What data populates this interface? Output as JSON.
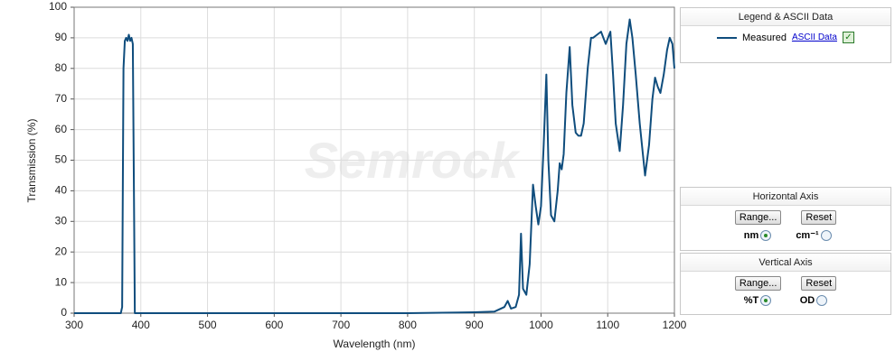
{
  "chart_data": {
    "type": "line",
    "x_label": "Wavelength (nm)",
    "y_label": "Transmission (%)",
    "watermark": "Semrock",
    "xlim": [
      300,
      1200
    ],
    "xticks": [
      300,
      400,
      500,
      600,
      700,
      800,
      900,
      1000,
      1100,
      1200
    ],
    "ylim": [
      0,
      100
    ],
    "yticks": [
      0,
      10,
      20,
      30,
      40,
      50,
      60,
      70,
      80,
      90,
      100
    ],
    "grid": true,
    "x": [
      300,
      370,
      372,
      374,
      376,
      378,
      380,
      382,
      384,
      386,
      388,
      390,
      391,
      400,
      600,
      800,
      900,
      930,
      945,
      950,
      955,
      962,
      967,
      970,
      973,
      978,
      983,
      988,
      992,
      996,
      1000,
      1004,
      1008,
      1011,
      1015,
      1020,
      1025,
      1028,
      1031,
      1034,
      1038,
      1043,
      1047,
      1052,
      1056,
      1060,
      1064,
      1070,
      1075,
      1078,
      1084,
      1090,
      1097,
      1104,
      1108,
      1112,
      1118,
      1123,
      1128,
      1133,
      1137,
      1142,
      1148,
      1156,
      1162,
      1167,
      1171,
      1175,
      1179,
      1184,
      1189,
      1193,
      1197,
      1200
    ],
    "series": [
      {
        "name": "Measured",
        "color": "#0f4d7d",
        "values": [
          0,
          0,
          2,
          80,
          89,
          90,
          89,
          91,
          89,
          90,
          88,
          30,
          0,
          0,
          0,
          0,
          0.3,
          0.5,
          2,
          4,
          1.5,
          2,
          6,
          26,
          8,
          6,
          16,
          42,
          35,
          29,
          35,
          55,
          78,
          50,
          32,
          30,
          40,
          49,
          47,
          52,
          72,
          87,
          68,
          59,
          58,
          58,
          62,
          80,
          90,
          90,
          91,
          92,
          88,
          92,
          78,
          62,
          53,
          68,
          88,
          96,
          90,
          78,
          62,
          45,
          55,
          70,
          77,
          74,
          72,
          78,
          86,
          90,
          88,
          80
        ]
      }
    ]
  },
  "legend_panel": {
    "title": "Legend & ASCII Data",
    "link": "ASCII Data"
  },
  "horizontal_panel": {
    "title": "Horizontal Axis",
    "range_button": "Range...",
    "reset_button": "Reset",
    "option_1": "nm",
    "option_2": "cm⁻¹"
  },
  "vertical_panel": {
    "title": "Vertical  Axis",
    "range_button": "Range...",
    "reset_button": "Reset",
    "option_1": "%T",
    "option_2": "OD"
  }
}
